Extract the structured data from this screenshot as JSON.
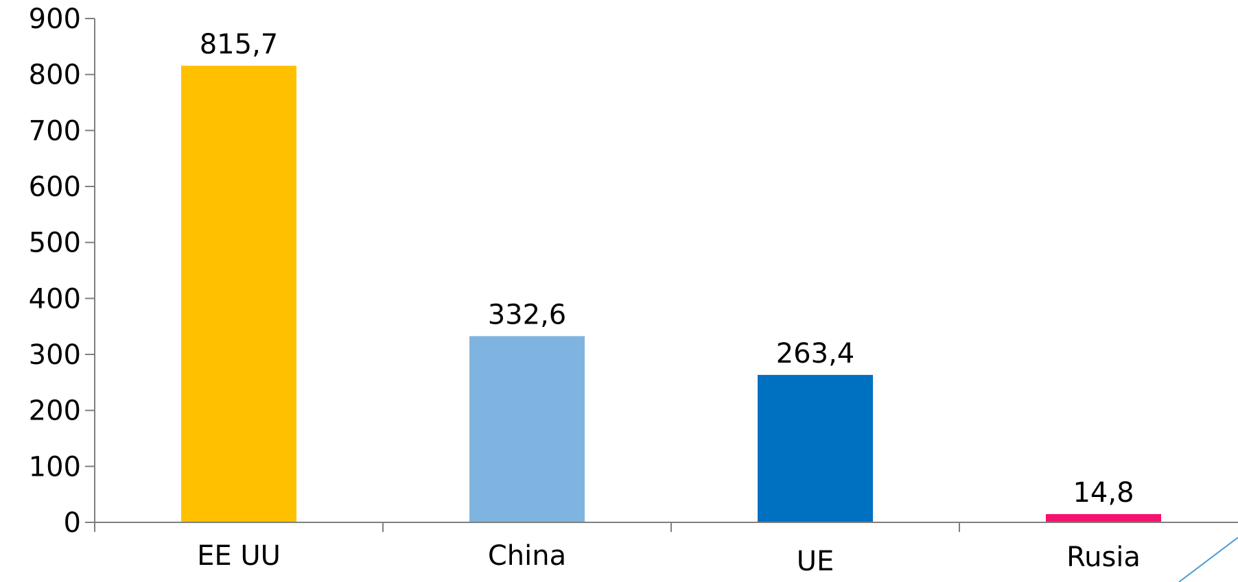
{
  "chart_data": {
    "type": "bar",
    "title": "",
    "xlabel": "",
    "ylabel": "",
    "categories": [
      "EE UU",
      "China",
      "UE",
      "Rusia"
    ],
    "values": [
      815.7,
      332.6,
      263.4,
      14.8
    ],
    "value_labels": [
      "815,7",
      "332,6",
      "263,4",
      "14,8"
    ],
    "ylim": [
      0,
      900
    ],
    "y_ticks": [
      0,
      100,
      200,
      300,
      400,
      500,
      600,
      700,
      800,
      900
    ],
    "y_tick_labels": [
      "0",
      "100",
      "200",
      "300",
      "400",
      "500",
      "600",
      "700",
      "800",
      "900"
    ],
    "bar_colors": [
      "#FFC000",
      "#7FB4E0",
      "#0070C0",
      "#F5126E"
    ],
    "axis_color": "#7F7F7F",
    "decoration_color": "#4A9BD1",
    "grid": false,
    "legend": "none"
  }
}
